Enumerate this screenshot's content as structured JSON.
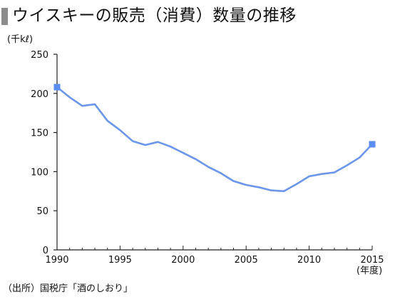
{
  "title": "ウイスキーの販売（消費）数量の推移",
  "source": "（出所）国税庁「酒のしおり」",
  "colors": {
    "line": "#6b96ea",
    "marker": "#5b8ef0",
    "axis": "#222222",
    "title_bar": "#8c8c8c"
  },
  "chart_data": {
    "type": "line",
    "title": "ウイスキーの販売（消費）数量の推移",
    "ylabel": "(千kℓ)",
    "xlabel": "(年度)",
    "ylim": [
      0,
      250
    ],
    "xlim": [
      1990,
      2015
    ],
    "yticks": [
      "0",
      "50",
      "100",
      "150",
      "200",
      "250"
    ],
    "xticks": [
      "1990",
      "1995",
      "2000",
      "2005",
      "2010",
      "2015"
    ],
    "grid": false,
    "x": [
      1990,
      1991,
      1992,
      1993,
      1994,
      1995,
      1996,
      1997,
      1998,
      1999,
      2000,
      2001,
      2002,
      2003,
      2004,
      2005,
      2006,
      2007,
      2008,
      2009,
      2010,
      2011,
      2012,
      2013,
      2014,
      2015
    ],
    "series": [
      {
        "values": [
          208,
          195,
          184,
          186,
          165,
          153,
          139,
          134,
          138,
          132,
          124,
          116,
          106,
          98,
          88,
          83,
          80,
          76,
          75,
          84,
          94,
          97,
          99,
          108,
          118,
          135
        ]
      }
    ],
    "highlighted_x": [
      1990,
      2015
    ]
  }
}
